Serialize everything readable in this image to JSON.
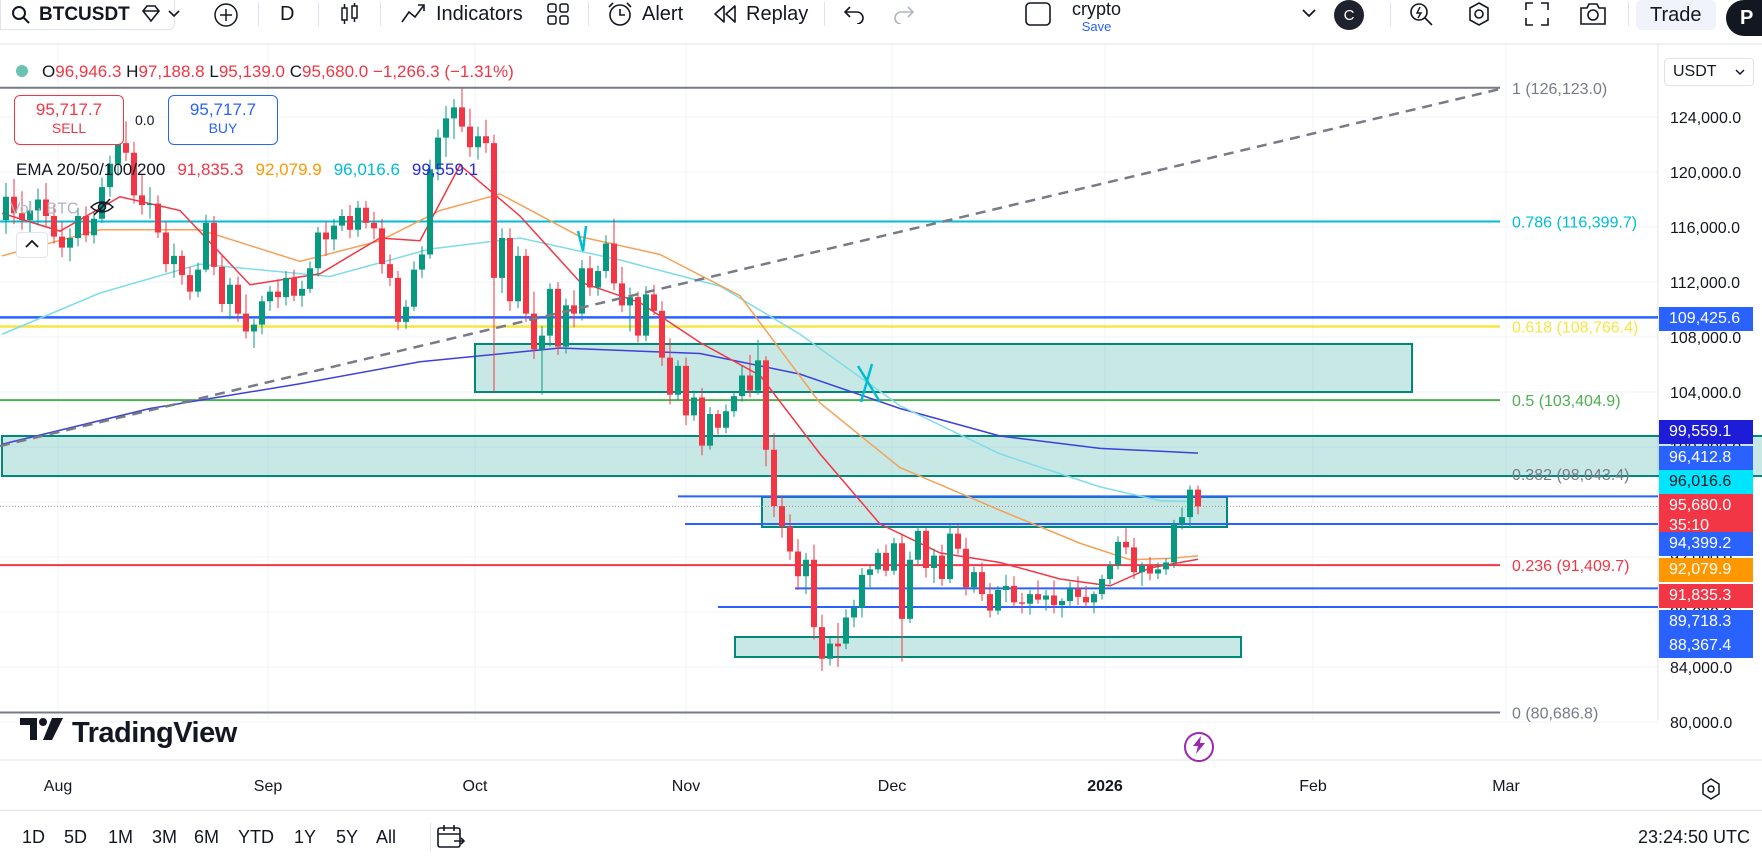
{
  "toolbar": {
    "symbol": "BTCUSDT",
    "interval": "D",
    "indicators_label": "Indicators",
    "alert_label": "Alert",
    "replay_label": "Replay",
    "layout_name": "crypto",
    "layout_save": "Save",
    "avatar_letter": "C",
    "trade_label": "Trade",
    "cut_label": "P"
  },
  "legend": {
    "o_label": "O",
    "o_value": "96,946.3",
    "h_label": "H",
    "h_value": "97,188.8",
    "l_label": "L",
    "l_value": "95,139.0",
    "c_label": "C",
    "c_value": "95,680.0",
    "change": "−1,266.3 (−1.31%)"
  },
  "trade_boxes": {
    "sell_price": "95,717.7",
    "sell_label": "SELL",
    "spread": "0.0",
    "buy_price": "95,717.7",
    "buy_label": "BUY"
  },
  "ema_legend": {
    "label": "EMA 20/50/100/200",
    "ema20": "91,835.3",
    "ema50": "92,079.9",
    "ema100": "96,016.6",
    "ema200": "99,559.1",
    "colors": {
      "ema20": "#f23645",
      "ema50": "#ff9800",
      "ema100": "#26c6da",
      "ema200": "#2a2ad8"
    }
  },
  "volume_legend": "Vol · BTC",
  "currency": "USDT",
  "price_axis": [
    "124,000.0",
    "120,000.0",
    "116,000.0",
    "112,000.0",
    "108,000.0",
    "104,000.0",
    "100,000.0",
    "96,000.0",
    "92,000.0",
    "88,000.0",
    "84,000.0",
    "80,000.0"
  ],
  "price_labels": [
    {
      "text": "109,425.6",
      "color": "#2962ff"
    },
    {
      "text": "99,559.1",
      "color": "#1d1dd8"
    },
    {
      "text": "96,412.8",
      "color": "#2962ff"
    },
    {
      "text": "96,016.6",
      "color": "#00e5ff",
      "dark_text": true
    },
    {
      "text": "95,680.0",
      "color": "#f23645",
      "sub": "35:10"
    },
    {
      "text": "94,399.2",
      "color": "#2962ff"
    },
    {
      "text": "92,079.9",
      "color": "#ff9800"
    },
    {
      "text": "91,835.3",
      "color": "#f23645"
    },
    {
      "text": "89,718.3",
      "color": "#2962ff"
    },
    {
      "text": "88,367.4",
      "color": "#2962ff"
    }
  ],
  "fib_levels": [
    {
      "text": "1 (126,123.0)",
      "color": "#787b86"
    },
    {
      "text": "0.786 (116,399.7)",
      "color": "#00bcd4"
    },
    {
      "text": "0.618 (108,766.4)",
      "color": "#f5e642"
    },
    {
      "text": "0.5 (103,404.9)",
      "color": "#4caf50"
    },
    {
      "text": "0.382 (98,043.4)",
      "color": "#787b86"
    },
    {
      "text": "0.236 (91,409.7)",
      "color": "#f23645"
    },
    {
      "text": "0 (80,686.8)",
      "color": "#787b86"
    }
  ],
  "time_axis": [
    "Aug",
    "Sep",
    "Oct",
    "Nov",
    "Dec",
    "2026",
    "Feb",
    "Mar"
  ],
  "logo_text": "TradingView",
  "ranges": [
    "1D",
    "5D",
    "1M",
    "3M",
    "6M",
    "YTD",
    "1Y",
    "5Y",
    "All"
  ],
  "clock": "23:24:50 UTC"
}
